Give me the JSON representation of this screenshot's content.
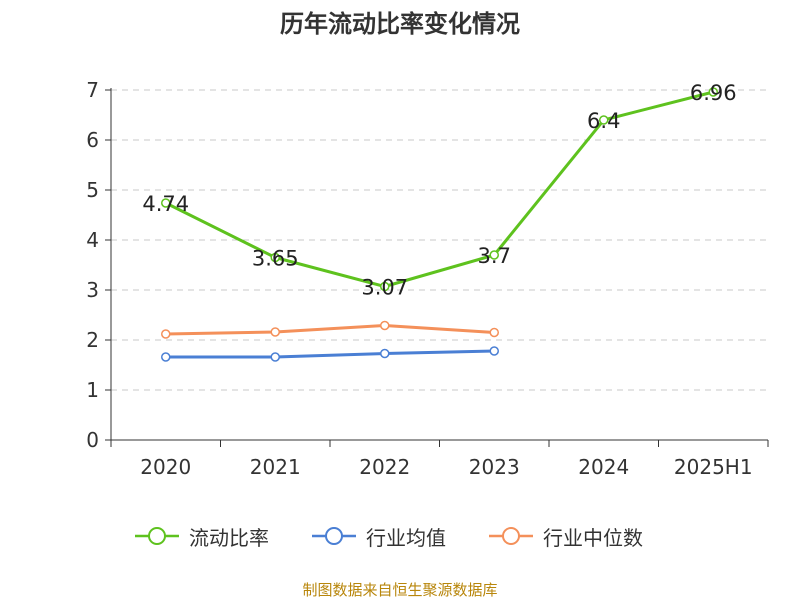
{
  "title": "历年流动比率变化情况",
  "source_note": "制图数据来自恒生聚源数据库",
  "colors": {
    "current_ratio": "#5ec21e",
    "industry_mean": "#4a7fd4",
    "industry_median": "#f4905a",
    "source_text": "#b8860b"
  },
  "chart_data": {
    "type": "line",
    "title": "历年流动比率变化情况",
    "categories": [
      "2020",
      "2021",
      "2022",
      "2023",
      "2024",
      "2025H1"
    ],
    "ylim": [
      0,
      7
    ],
    "yticks": [
      0,
      1,
      2,
      3,
      4,
      5,
      6,
      7
    ],
    "grid": true,
    "legend_position": "bottom",
    "series": [
      {
        "name": "流动比率",
        "values": [
          4.74,
          3.65,
          3.07,
          3.7,
          6.4,
          6.96
        ],
        "labels": [
          "4.74",
          "3.65",
          "3.07",
          "3.7",
          "6.4",
          "6.96"
        ],
        "color": "#5ec21e"
      },
      {
        "name": "行业均值",
        "values": [
          1.66,
          1.66,
          1.73,
          1.78,
          null,
          null
        ],
        "color": "#4a7fd4"
      },
      {
        "name": "行业中位数",
        "values": [
          2.12,
          2.16,
          2.29,
          2.15,
          null,
          null
        ],
        "color": "#f4905a"
      }
    ]
  }
}
